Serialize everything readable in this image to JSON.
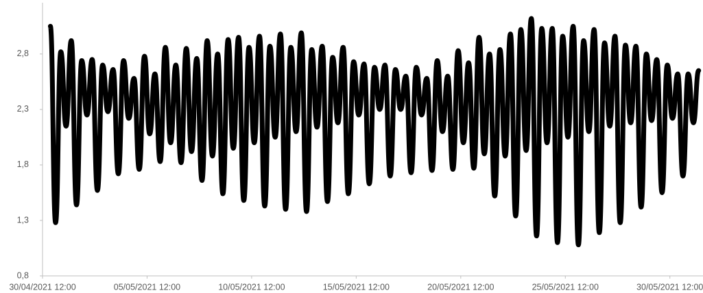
{
  "chart_data": {
    "type": "line",
    "x": [
      "30/04/2021 21:00",
      "01/05/2021 03:00",
      "01/05/2021 09:00",
      "01/05/2021 15:00",
      "01/05/2021 21:00",
      "02/05/2021 03:00",
      "02/05/2021 09:00",
      "02/05/2021 15:00",
      "02/05/2021 21:00",
      "03/05/2021 03:00",
      "03/05/2021 09:00",
      "03/05/2021 15:00",
      "03/05/2021 21:00",
      "04/05/2021 03:00",
      "04/05/2021 09:00",
      "04/05/2021 15:00",
      "04/05/2021 21:00",
      "05/05/2021 03:00",
      "05/05/2021 09:00",
      "05/05/2021 15:00",
      "05/05/2021 21:00",
      "06/05/2021 03:00",
      "06/05/2021 09:00",
      "06/05/2021 15:00",
      "06/05/2021 21:00",
      "07/05/2021 03:00",
      "07/05/2021 09:00",
      "07/05/2021 15:00",
      "07/05/2021 21:00",
      "08/05/2021 03:00",
      "08/05/2021 09:00",
      "08/05/2021 15:00",
      "08/05/2021 21:00",
      "09/05/2021 03:00",
      "09/05/2021 09:00",
      "09/05/2021 15:00",
      "09/05/2021 21:00",
      "10/05/2021 03:00",
      "10/05/2021 09:00",
      "10/05/2021 15:00",
      "10/05/2021 21:00",
      "11/05/2021 03:00",
      "11/05/2021 09:00",
      "11/05/2021 15:00",
      "11/05/2021 21:00",
      "12/05/2021 03:00",
      "12/05/2021 09:00",
      "12/05/2021 15:00",
      "12/05/2021 21:00",
      "13/05/2021 03:00",
      "13/05/2021 09:00",
      "13/05/2021 15:00",
      "13/05/2021 21:00",
      "14/05/2021 03:00",
      "14/05/2021 09:00",
      "14/05/2021 15:00",
      "14/05/2021 21:00",
      "15/05/2021 03:00",
      "15/05/2021 09:00",
      "15/05/2021 15:00",
      "15/05/2021 21:00",
      "16/05/2021 03:00",
      "16/05/2021 09:00",
      "16/05/2021 15:00",
      "16/05/2021 21:00",
      "17/05/2021 03:00",
      "17/05/2021 09:00",
      "17/05/2021 15:00",
      "17/05/2021 21:00",
      "18/05/2021 03:00",
      "18/05/2021 09:00",
      "18/05/2021 15:00",
      "18/05/2021 21:00",
      "19/05/2021 03:00",
      "19/05/2021 09:00",
      "19/05/2021 15:00",
      "19/05/2021 21:00",
      "20/05/2021 03:00",
      "20/05/2021 09:00",
      "20/05/2021 15:00",
      "20/05/2021 21:00",
      "21/05/2021 03:00",
      "21/05/2021 09:00",
      "21/05/2021 15:00",
      "21/05/2021 21:00",
      "22/05/2021 03:00",
      "22/05/2021 09:00",
      "22/05/2021 15:00",
      "22/05/2021 21:00",
      "23/05/2021 03:00",
      "23/05/2021 09:00",
      "23/05/2021 15:00",
      "23/05/2021 21:00",
      "24/05/2021 03:00",
      "24/05/2021 09:00",
      "24/05/2021 15:00",
      "24/05/2021 21:00",
      "25/05/2021 03:00",
      "25/05/2021 09:00",
      "25/05/2021 15:00",
      "25/05/2021 21:00",
      "26/05/2021 03:00",
      "26/05/2021 09:00",
      "26/05/2021 15:00",
      "26/05/2021 21:00",
      "27/05/2021 03:00",
      "27/05/2021 09:00",
      "27/05/2021 15:00",
      "27/05/2021 21:00",
      "28/05/2021 03:00",
      "28/05/2021 09:00",
      "28/05/2021 15:00",
      "28/05/2021 21:00",
      "29/05/2021 03:00",
      "29/05/2021 09:00",
      "29/05/2021 15:00",
      "29/05/2021 21:00",
      "30/05/2021 03:00",
      "30/05/2021 09:00",
      "30/05/2021 15:00",
      "30/05/2021 21:00",
      "31/05/2021 03:00",
      "31/05/2021 09:00",
      "31/05/2021 15:00",
      "31/05/2021 21:00"
    ],
    "values": [
      3.05,
      1.28,
      2.82,
      2.15,
      2.92,
      1.44,
      2.74,
      2.25,
      2.75,
      1.57,
      2.7,
      2.28,
      2.66,
      1.72,
      2.74,
      2.22,
      2.58,
      1.76,
      2.78,
      2.08,
      2.62,
      1.83,
      2.86,
      2.0,
      2.7,
      1.82,
      2.85,
      1.92,
      2.76,
      1.66,
      2.92,
      1.88,
      2.8,
      1.54,
      2.93,
      1.95,
      2.95,
      1.48,
      2.86,
      2.0,
      2.96,
      1.43,
      2.87,
      2.05,
      2.98,
      1.4,
      2.86,
      2.1,
      2.99,
      1.38,
      2.84,
      2.14,
      2.87,
      1.47,
      2.77,
      2.18,
      2.86,
      1.54,
      2.73,
      2.25,
      2.71,
      1.63,
      2.68,
      2.3,
      2.7,
      1.7,
      2.66,
      2.3,
      2.6,
      1.73,
      2.68,
      2.25,
      2.58,
      1.75,
      2.74,
      2.1,
      2.6,
      1.76,
      2.83,
      2.0,
      2.72,
      1.77,
      2.95,
      1.9,
      2.8,
      1.52,
      2.84,
      1.88,
      2.98,
      1.34,
      3.02,
      1.93,
      3.12,
      1.16,
      3.03,
      2.0,
      3.03,
      1.1,
      2.96,
      2.05,
      3.05,
      1.08,
      2.92,
      2.1,
      3.02,
      1.19,
      2.9,
      2.15,
      2.96,
      1.28,
      2.88,
      2.18,
      2.87,
      1.42,
      2.8,
      2.2,
      2.75,
      1.55,
      2.7,
      2.22,
      2.62,
      1.7,
      2.62,
      2.18,
      2.65
    ],
    "color": "#000000",
    "xlim": [
      "30/04/2021 12:00",
      "01/06/2021 02:00"
    ],
    "xticks": [
      "30/04/2021 12:00",
      "05/05/2021 12:00",
      "10/05/2021 12:00",
      "15/05/2021 12:00",
      "20/05/2021 12:00",
      "25/05/2021 12:00",
      "30/05/2021 12:00"
    ],
    "ylim": [
      0.8,
      3.2
    ],
    "yticks": [
      {
        "value": 0.8,
        "label": "0,8"
      },
      {
        "value": 1.3,
        "label": "1,3"
      },
      {
        "value": 1.8,
        "label": "1,8"
      },
      {
        "value": 2.3,
        "label": "2,3"
      },
      {
        "value": 2.8,
        "label": "2,8"
      }
    ],
    "grid": false
  }
}
